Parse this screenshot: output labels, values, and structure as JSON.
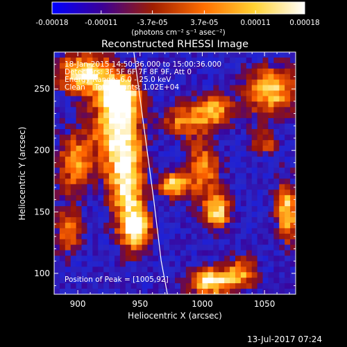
{
  "chart_data": {
    "type": "heatmap",
    "title": "Reconstructed RHESSI Image",
    "xlabel": "Heliocentric X (arcsec)",
    "ylabel": "Heliocentric Y (arcsec)",
    "xlim": [
      881,
      1075
    ],
    "ylim": [
      83,
      280
    ],
    "x_ticks": [
      900,
      950,
      1000,
      1050
    ],
    "y_ticks": [
      100,
      150,
      200,
      250
    ],
    "colorbar": {
      "range": [
        -0.00018,
        0.00018
      ],
      "tick_values": [
        -0.00018,
        -0.00011,
        -3.7e-05,
        3.7e-05,
        0.00011,
        0.00018
      ],
      "tick_labels": [
        "-0.00018",
        "-0.00011",
        "-3.7e-05",
        "3.7e-05",
        "0.00011",
        "0.00018"
      ],
      "units_label": "(photons cm⁻² s⁻¹ asec⁻²)",
      "colormap": [
        "#0000ff",
        "#3c0096",
        "#a01e00",
        "#ff6e00",
        "#ffd232",
        "#ffffff"
      ]
    },
    "annotation_lines": [
      "18-Jan-2015 14:50:36.000 to 15:00:36.000",
      "Detectors: 3F 5F 6F 7F 8F 9F, Att 0",
      "Energy Range: 6.0 - 25.0 keV",
      "Clean    Total counts: 1.02E+04"
    ],
    "peak_label": "Position of Peak = [1005,92]",
    "peak_position": [
      1005,
      92
    ],
    "limb_curve": [
      [
        945,
        280
      ],
      [
        953,
        220
      ],
      [
        961,
        160
      ],
      [
        967,
        110
      ],
      [
        972,
        83
      ]
    ],
    "sources": [
      {
        "x": 905,
        "y": 262,
        "sx": 16,
        "sy": 12,
        "amp": 0.95
      },
      {
        "x": 930,
        "y": 220,
        "sx": 13,
        "sy": 24,
        "amp": 0.95
      },
      {
        "x": 935,
        "y": 245,
        "sx": 10,
        "sy": 10,
        "amp": 0.9
      },
      {
        "x": 940,
        "y": 172,
        "sx": 10,
        "sy": 28,
        "amp": 0.95
      },
      {
        "x": 948,
        "y": 135,
        "sx": 8,
        "sy": 12,
        "amp": 0.9
      },
      {
        "x": 898,
        "y": 190,
        "sx": 10,
        "sy": 18,
        "amp": 0.7
      },
      {
        "x": 893,
        "y": 135,
        "sx": 8,
        "sy": 14,
        "amp": 0.6
      },
      {
        "x": 985,
        "y": 225,
        "sx": 12,
        "sy": 10,
        "amp": 0.65
      },
      {
        "x": 1010,
        "y": 232,
        "sx": 10,
        "sy": 10,
        "amp": 0.75
      },
      {
        "x": 977,
        "y": 172,
        "sx": 8,
        "sy": 7,
        "amp": 0.95
      },
      {
        "x": 1000,
        "y": 185,
        "sx": 10,
        "sy": 16,
        "amp": 0.7
      },
      {
        "x": 1012,
        "y": 150,
        "sx": 8,
        "sy": 10,
        "amp": 0.9
      },
      {
        "x": 1007,
        "y": 93,
        "sx": 12,
        "sy": 8,
        "amp": 1.0
      },
      {
        "x": 1032,
        "y": 100,
        "sx": 9,
        "sy": 9,
        "amp": 0.7
      },
      {
        "x": 1055,
        "y": 248,
        "sx": 15,
        "sy": 14,
        "amp": 0.85
      },
      {
        "x": 1068,
        "y": 150,
        "sx": 6,
        "sy": 18,
        "amp": 0.9
      },
      {
        "x": 1050,
        "y": 205,
        "sx": 8,
        "sy": 8,
        "amp": 0.5
      }
    ]
  },
  "footer": {
    "timestamp": "13-Jul-2017 07:24"
  }
}
